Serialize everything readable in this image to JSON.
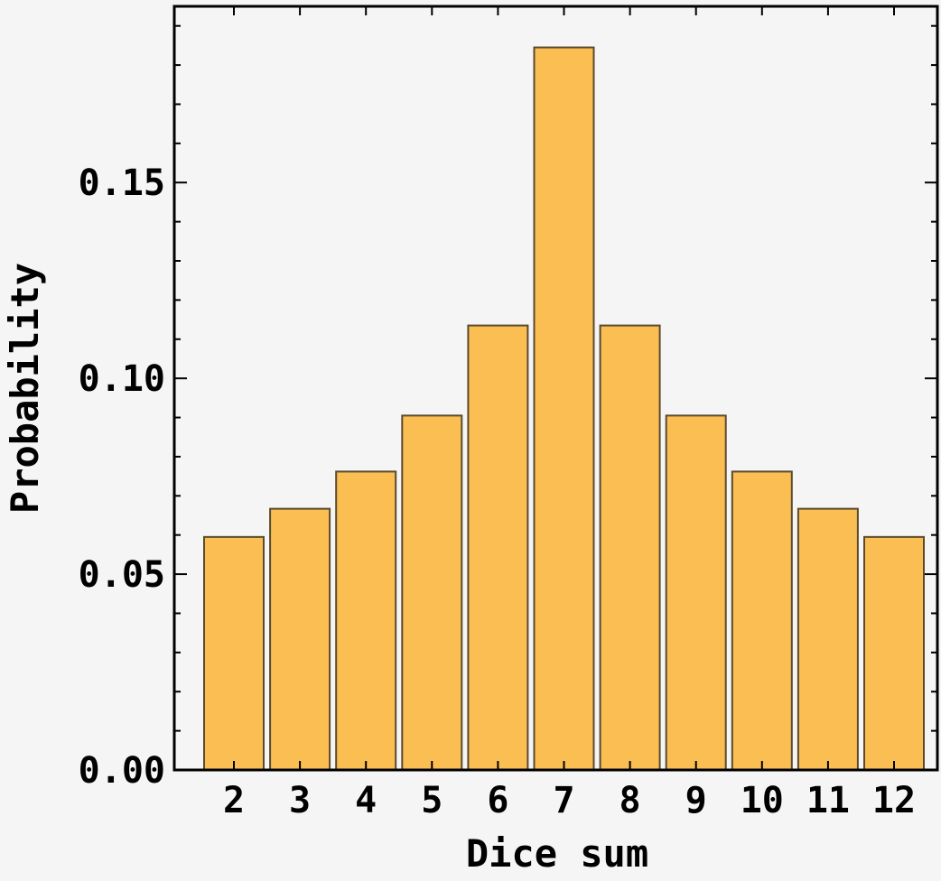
{
  "chart_data": {
    "type": "bar",
    "title": "",
    "xlabel": "Dice sum",
    "ylabel": "Probability",
    "categories": [
      "2",
      "3",
      "4",
      "5",
      "6",
      "7",
      "8",
      "9",
      "10",
      "11",
      "12"
    ],
    "values": [
      0.0595,
      0.0667,
      0.0762,
      0.0905,
      0.1135,
      0.1845,
      0.1135,
      0.0905,
      0.0762,
      0.0667,
      0.0595
    ],
    "ylim": [
      0,
      0.195
    ],
    "yticks": [
      "0.00",
      "0.05",
      "0.10",
      "0.15"
    ],
    "ytick_values": [
      0.0,
      0.05,
      0.1,
      0.15
    ],
    "grid": false,
    "legend": "none",
    "colors": {
      "bar_fill": "#fbbe52",
      "bar_stroke": "#5a4a2e",
      "frame": "#000000",
      "background": "#f5f5f5"
    }
  }
}
